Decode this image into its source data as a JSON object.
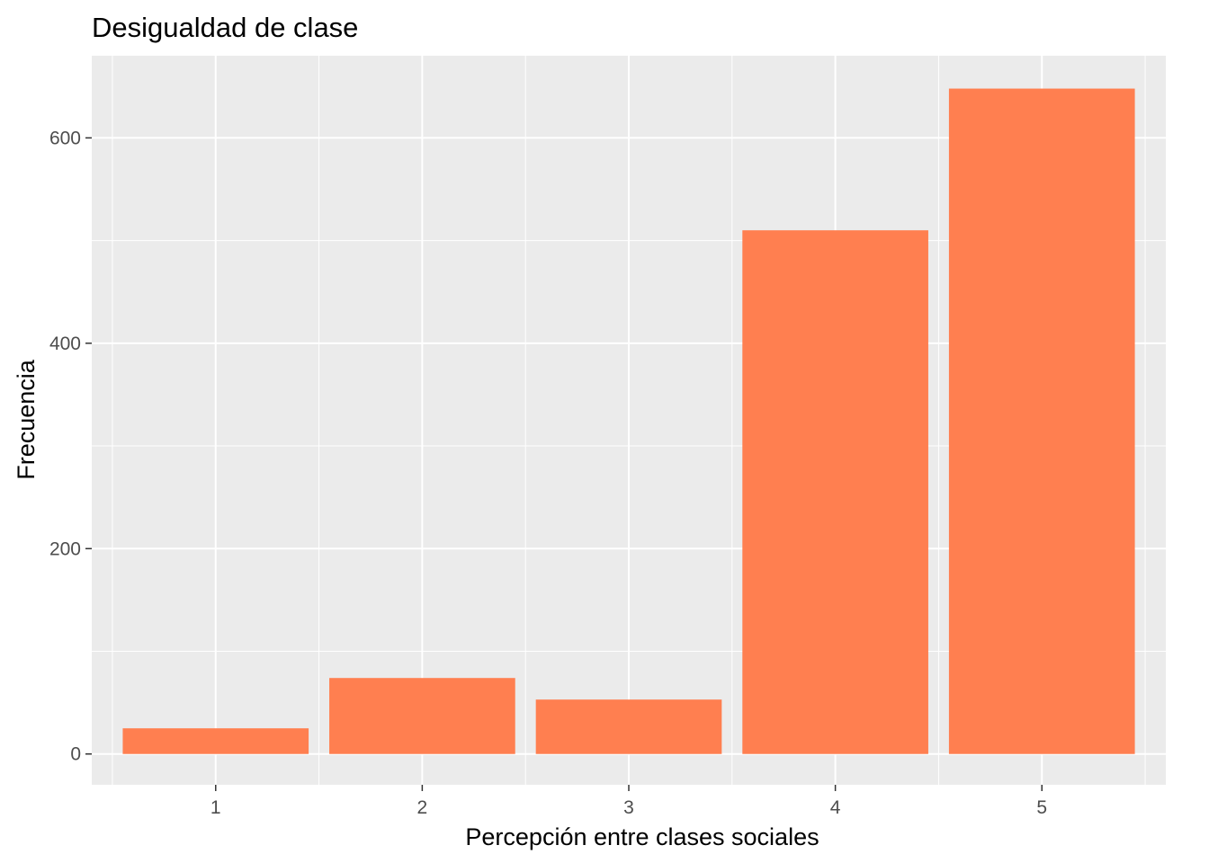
{
  "chart_data": {
    "type": "bar",
    "title": "Desigualdad de clase",
    "xlabel": "Percepción entre clases sociales",
    "ylabel": "Frecuencia",
    "categories": [
      "1",
      "2",
      "3",
      "4",
      "5"
    ],
    "values": [
      25,
      74,
      53,
      510,
      648
    ],
    "ylim": [
      -30,
      680
    ],
    "yticks": [
      0,
      200,
      400,
      600
    ],
    "ytick_labels": [
      "0",
      "200",
      "400",
      "600"
    ],
    "grid": true,
    "legend": "none",
    "colors": {
      "bar": "#FF7F50",
      "panel": "#EBEBEB",
      "grid": "#FFFFFF",
      "tick_label": "#4D4D4D",
      "tick_mark": "#333333"
    }
  }
}
